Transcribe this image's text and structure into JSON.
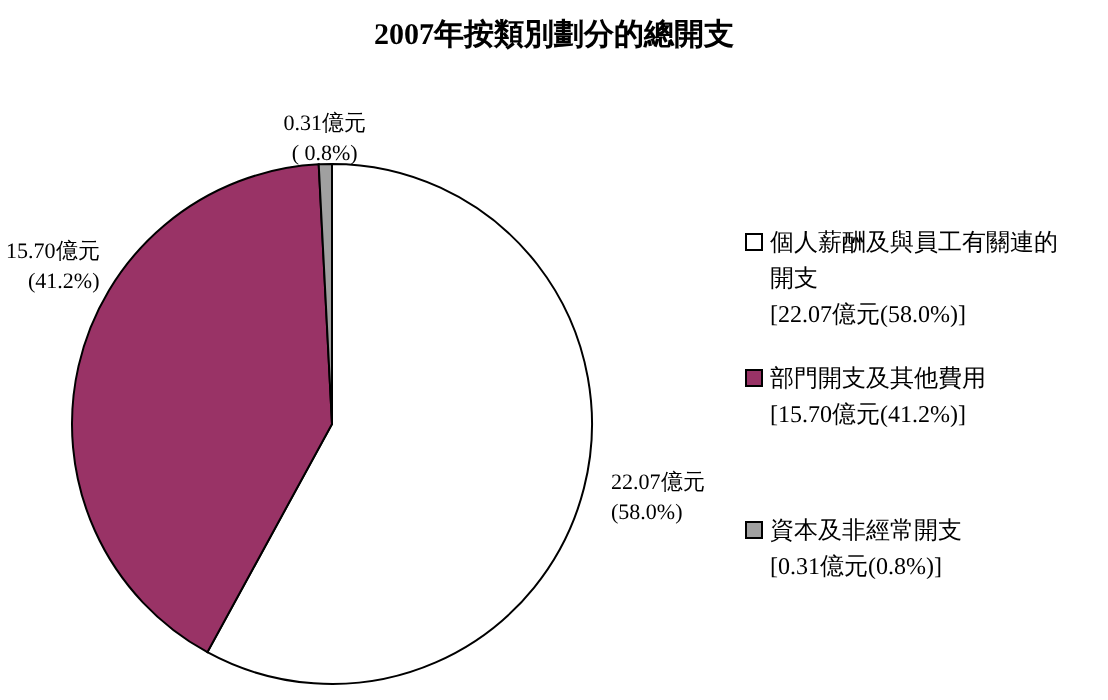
{
  "chart_data": {
    "type": "pie",
    "title": "2007年按類別劃分的總開支",
    "categories": [
      "個人薪酬及與員工有關連的開支\n[22.07億元(58.0%)]",
      "部門開支及其他費用\n[15.70億元(41.2%)]",
      "資本及非經常開支\n[0.31億元(0.8%)]"
    ],
    "values": [
      22.07,
      15.7,
      0.31
    ],
    "colors": [
      "#ffffff",
      "#993366",
      "#a0a0a0"
    ],
    "value_labels": [
      "22.07億元\n(58.0%)",
      "15.70億元\n(41.2%)",
      "0.31億元\n( 0.8%)"
    ],
    "legend": "right"
  }
}
